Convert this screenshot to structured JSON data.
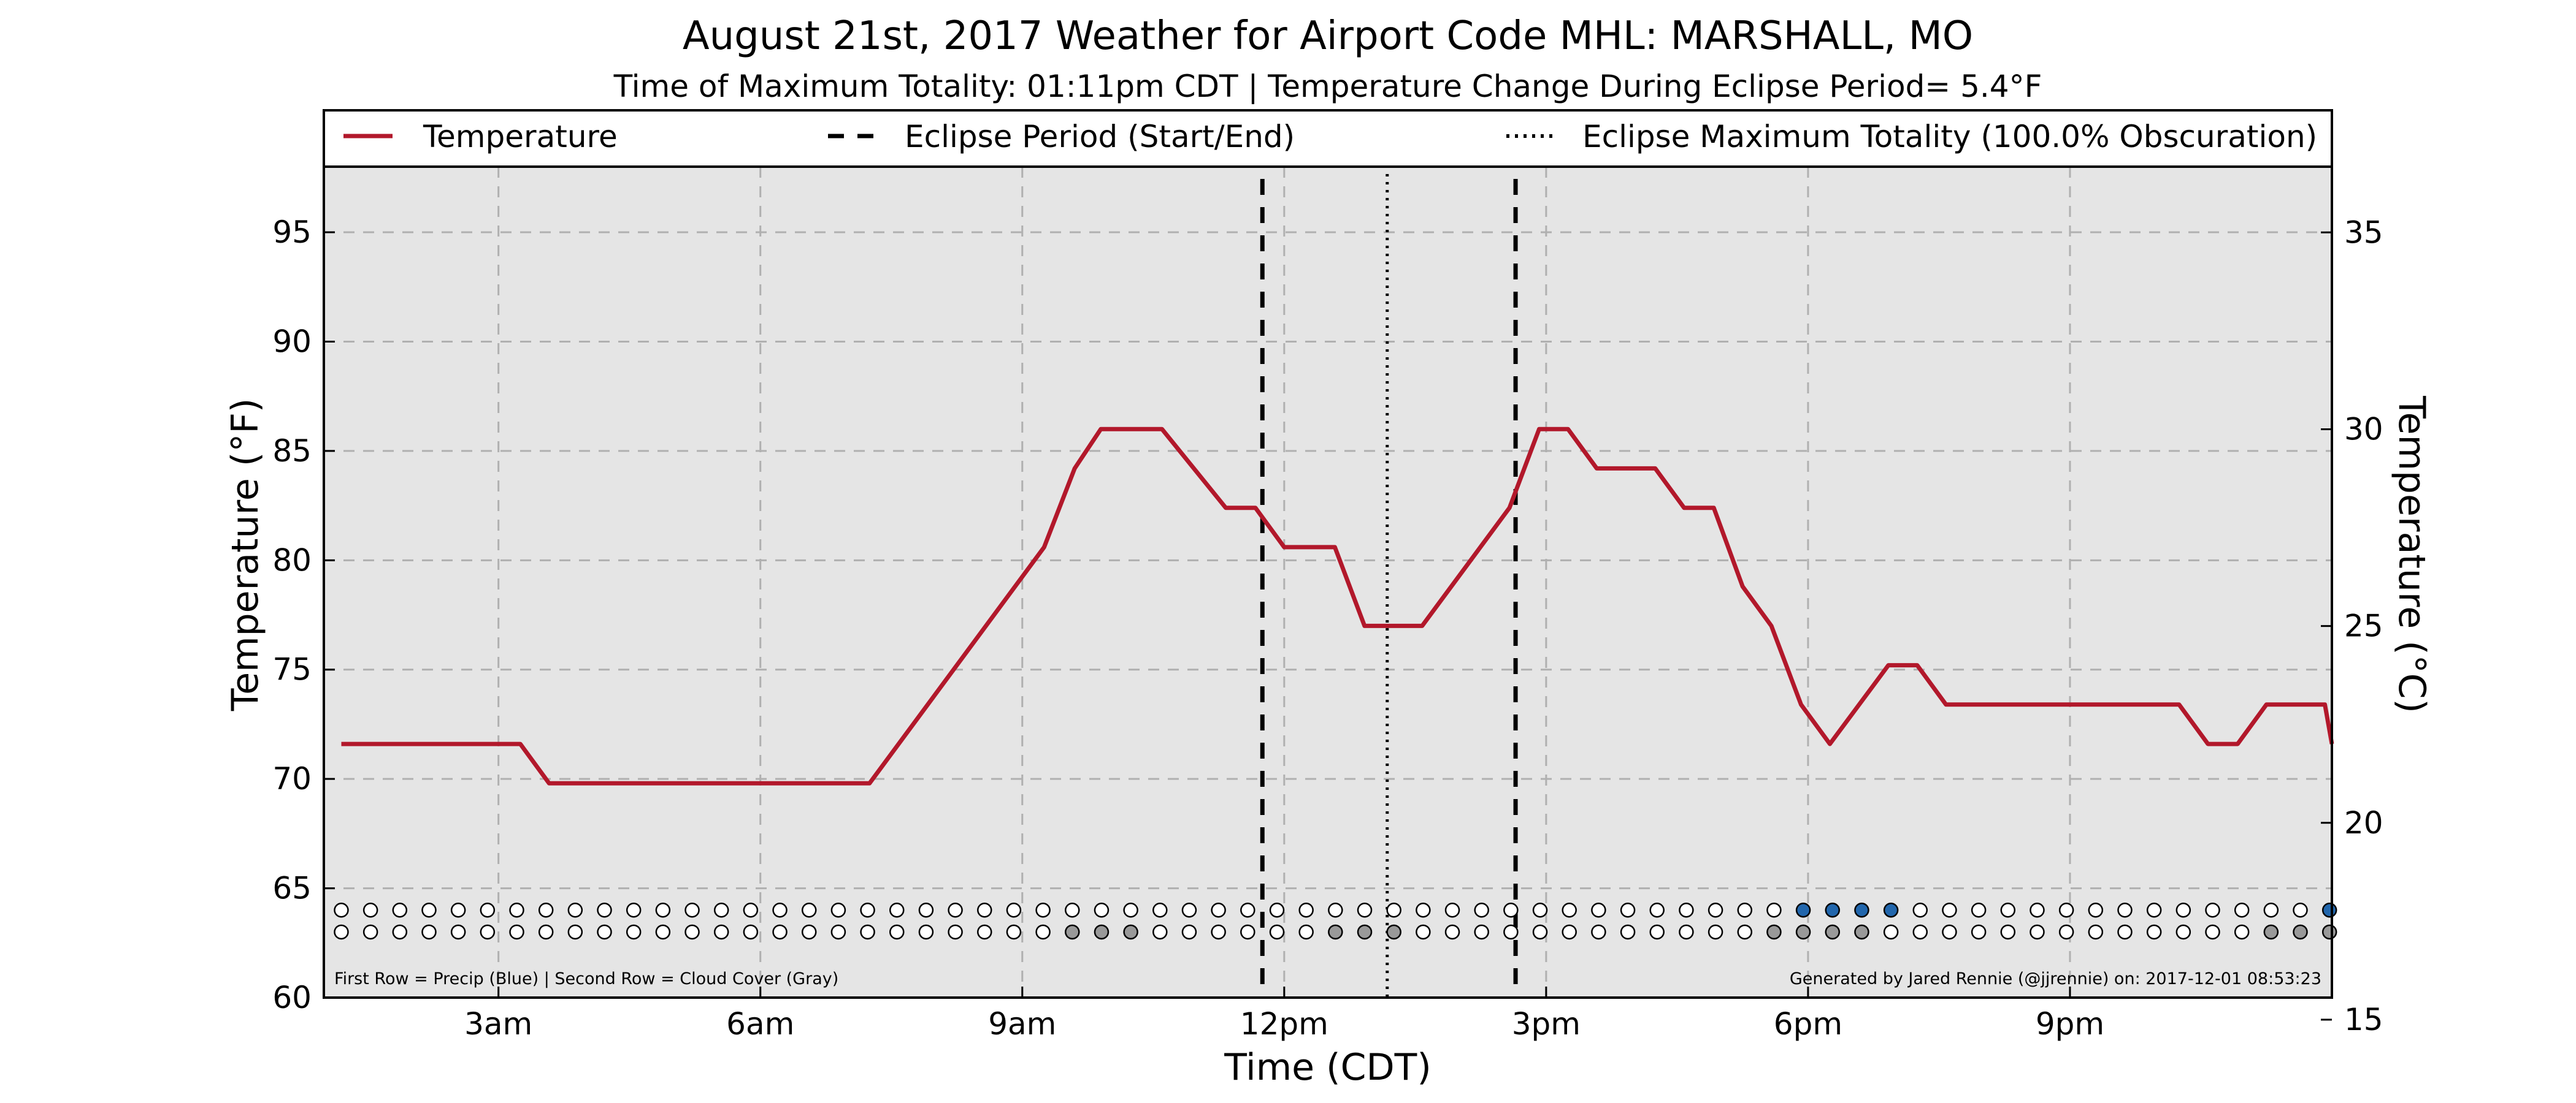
{
  "chart_data": {
    "type": "line",
    "title": "August 21st, 2017 Weather for Airport Code MHL: MARSHALL, MO",
    "subtitle": "Time of Maximum Totality: 01:11pm CDT | Temperature Change During Eclipse Period= 5.4°F",
    "xlabel": "Time (CDT)",
    "ylabel": "Temperature (°F)",
    "y2label": "Temperature (°C)",
    "xlim": [
      1.0,
      24.0
    ],
    "ylim": [
      60,
      98
    ],
    "y2lim": [
      15.56,
      36.67
    ],
    "grid": true,
    "legend_position": "top",
    "x_ticks": [
      {
        "x": 3,
        "label": "3am"
      },
      {
        "x": 6,
        "label": "6am"
      },
      {
        "x": 9,
        "label": "9am"
      },
      {
        "x": 12,
        "label": "12pm"
      },
      {
        "x": 15,
        "label": "3pm"
      },
      {
        "x": 18,
        "label": "6pm"
      },
      {
        "x": 21,
        "label": "9pm"
      }
    ],
    "y_ticks": [
      60,
      65,
      70,
      75,
      80,
      85,
      90,
      95
    ],
    "y2_ticks": [
      15,
      20,
      25,
      30,
      35
    ],
    "legend": [
      {
        "label": "Temperature",
        "style": "solid",
        "color": "#b2182b"
      },
      {
        "label": "Eclipse Period (Start/End)",
        "style": "dashed",
        "color": "#000000"
      },
      {
        "label": "Eclipse Maximum Totality (100.0% Obscuration)",
        "style": "dotted",
        "color": "#000000"
      }
    ],
    "series": [
      {
        "name": "Temperature",
        "color": "#b2182b",
        "x": [
          1.2,
          3.25,
          3.58,
          7.25,
          9.25,
          9.6,
          9.9,
          10.6,
          11.33,
          11.67,
          12.0,
          12.58,
          12.92,
          13.58,
          14.58,
          14.92,
          15.25,
          15.58,
          16.25,
          16.58,
          16.92,
          17.25,
          17.58,
          17.92,
          18.25,
          18.92,
          19.25,
          19.58,
          20.25,
          20.92,
          21.25,
          21.92,
          22.25,
          22.58,
          22.92,
          23.25,
          23.58,
          23.92,
          24.0
        ],
        "y": [
          71.6,
          71.6,
          69.8,
          69.8,
          80.6,
          84.2,
          86.0,
          86.0,
          82.4,
          82.4,
          80.6,
          80.6,
          77.0,
          77.0,
          82.4,
          86.0,
          86.0,
          84.2,
          84.2,
          82.4,
          82.4,
          78.8,
          77.0,
          73.4,
          71.6,
          75.2,
          75.2,
          73.4,
          73.4,
          73.4,
          73.4,
          73.4,
          73.4,
          71.6,
          71.6,
          73.4,
          73.4,
          73.4,
          71.6
        ]
      }
    ],
    "eclipse_start": 11.75,
    "eclipse_end": 14.65,
    "eclipse_max": 13.18,
    "marker_rows": {
      "x_start": 1.2,
      "x_step": 0.3349,
      "count": 69,
      "precip_y": 64.0,
      "cloud_y": 63.0,
      "precip_indexes": [
        50,
        51,
        52,
        53,
        68
      ],
      "precip_color": "#2166ac",
      "cloud_indexes": [
        25,
        26,
        27,
        34,
        35,
        36,
        49,
        50,
        51,
        52,
        66,
        67,
        68
      ],
      "cloud_color": "#999999"
    },
    "annotation_left": "First Row = Precip (Blue) | Second Row = Cloud Cover (Gray)",
    "annotation_right": "Generated by Jared Rennie (@jjrennie) on: 2017-12-01 08:53:23",
    "colors": {
      "plot_background": "#e5e5e5",
      "grid": "#b0b0b0"
    }
  }
}
